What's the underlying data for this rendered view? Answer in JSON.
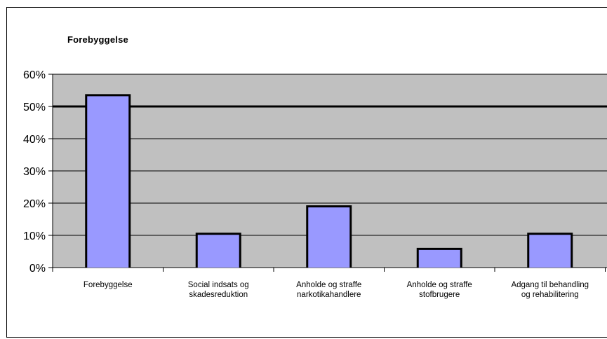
{
  "chart_data": {
    "type": "bar",
    "title": "Forebyggelse",
    "xlabel": "",
    "ylabel": "",
    "categories": [
      [
        "Forebyggelse"
      ],
      [
        "Social indsats og",
        "skadesreduktion"
      ],
      [
        "Anholde og straffe",
        "narkotikahandlere"
      ],
      [
        "Anholde og straffe",
        "stofbrugere"
      ],
      [
        "Adgang til behandling",
        "og rehabilitering"
      ]
    ],
    "values": [
      53.5,
      10.5,
      19,
      5.8,
      10.5
    ],
    "ylim": [
      0,
      60
    ],
    "yticks": [
      "0%",
      "10%",
      "20%",
      "30%",
      "40%",
      "50%",
      "60%"
    ],
    "reference_line": 50,
    "grid": true,
    "legend": "none",
    "colors": {
      "bar_fill": "#9999FF",
      "bar_outline": "#000000",
      "plot_background": "#C0C0C0",
      "gridline": "#000000"
    }
  }
}
